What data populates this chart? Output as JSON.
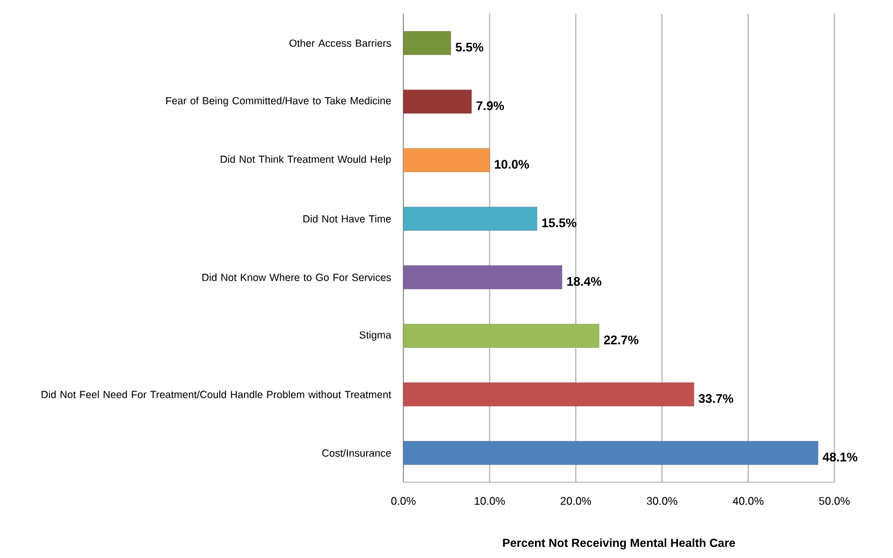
{
  "chart_data": {
    "type": "bar",
    "orientation": "horizontal",
    "categories": [
      "Other Access Barriers",
      "Fear of Being Committed/Have to Take Medicine",
      "Did Not Think Treatment Would Help",
      "Did Not Have Time",
      "Did Not Know Where to Go For Services",
      "Stigma",
      "Did Not Feel Need For Treatment/Could Handle Problem without Treatment",
      "Cost/Insurance"
    ],
    "values": [
      5.5,
      7.9,
      10.0,
      15.5,
      18.4,
      22.7,
      33.7,
      48.1
    ],
    "value_labels": [
      "5.5%",
      "7.9%",
      "10.0%",
      "15.5%",
      "18.4%",
      "22.7%",
      "33.7%",
      "48.1%"
    ],
    "colors": [
      "#77933c",
      "#953735",
      "#f79646",
      "#4bacc6",
      "#8064a2",
      "#9bbb59",
      "#c0504d",
      "#4f81bd"
    ],
    "xlabel": "Percent Not Receiving Mental Health Care",
    "xlim": [
      0,
      50
    ],
    "xticks": [
      {
        "value": 0,
        "label": "0.0%"
      },
      {
        "value": 10,
        "label": "10.0%"
      },
      {
        "value": 20,
        "label": "20.0%"
      },
      {
        "value": 30,
        "label": "30.0%"
      },
      {
        "value": 40,
        "label": "40.0%"
      },
      {
        "value": 50,
        "label": "50.0%"
      }
    ],
    "grid": "x"
  }
}
